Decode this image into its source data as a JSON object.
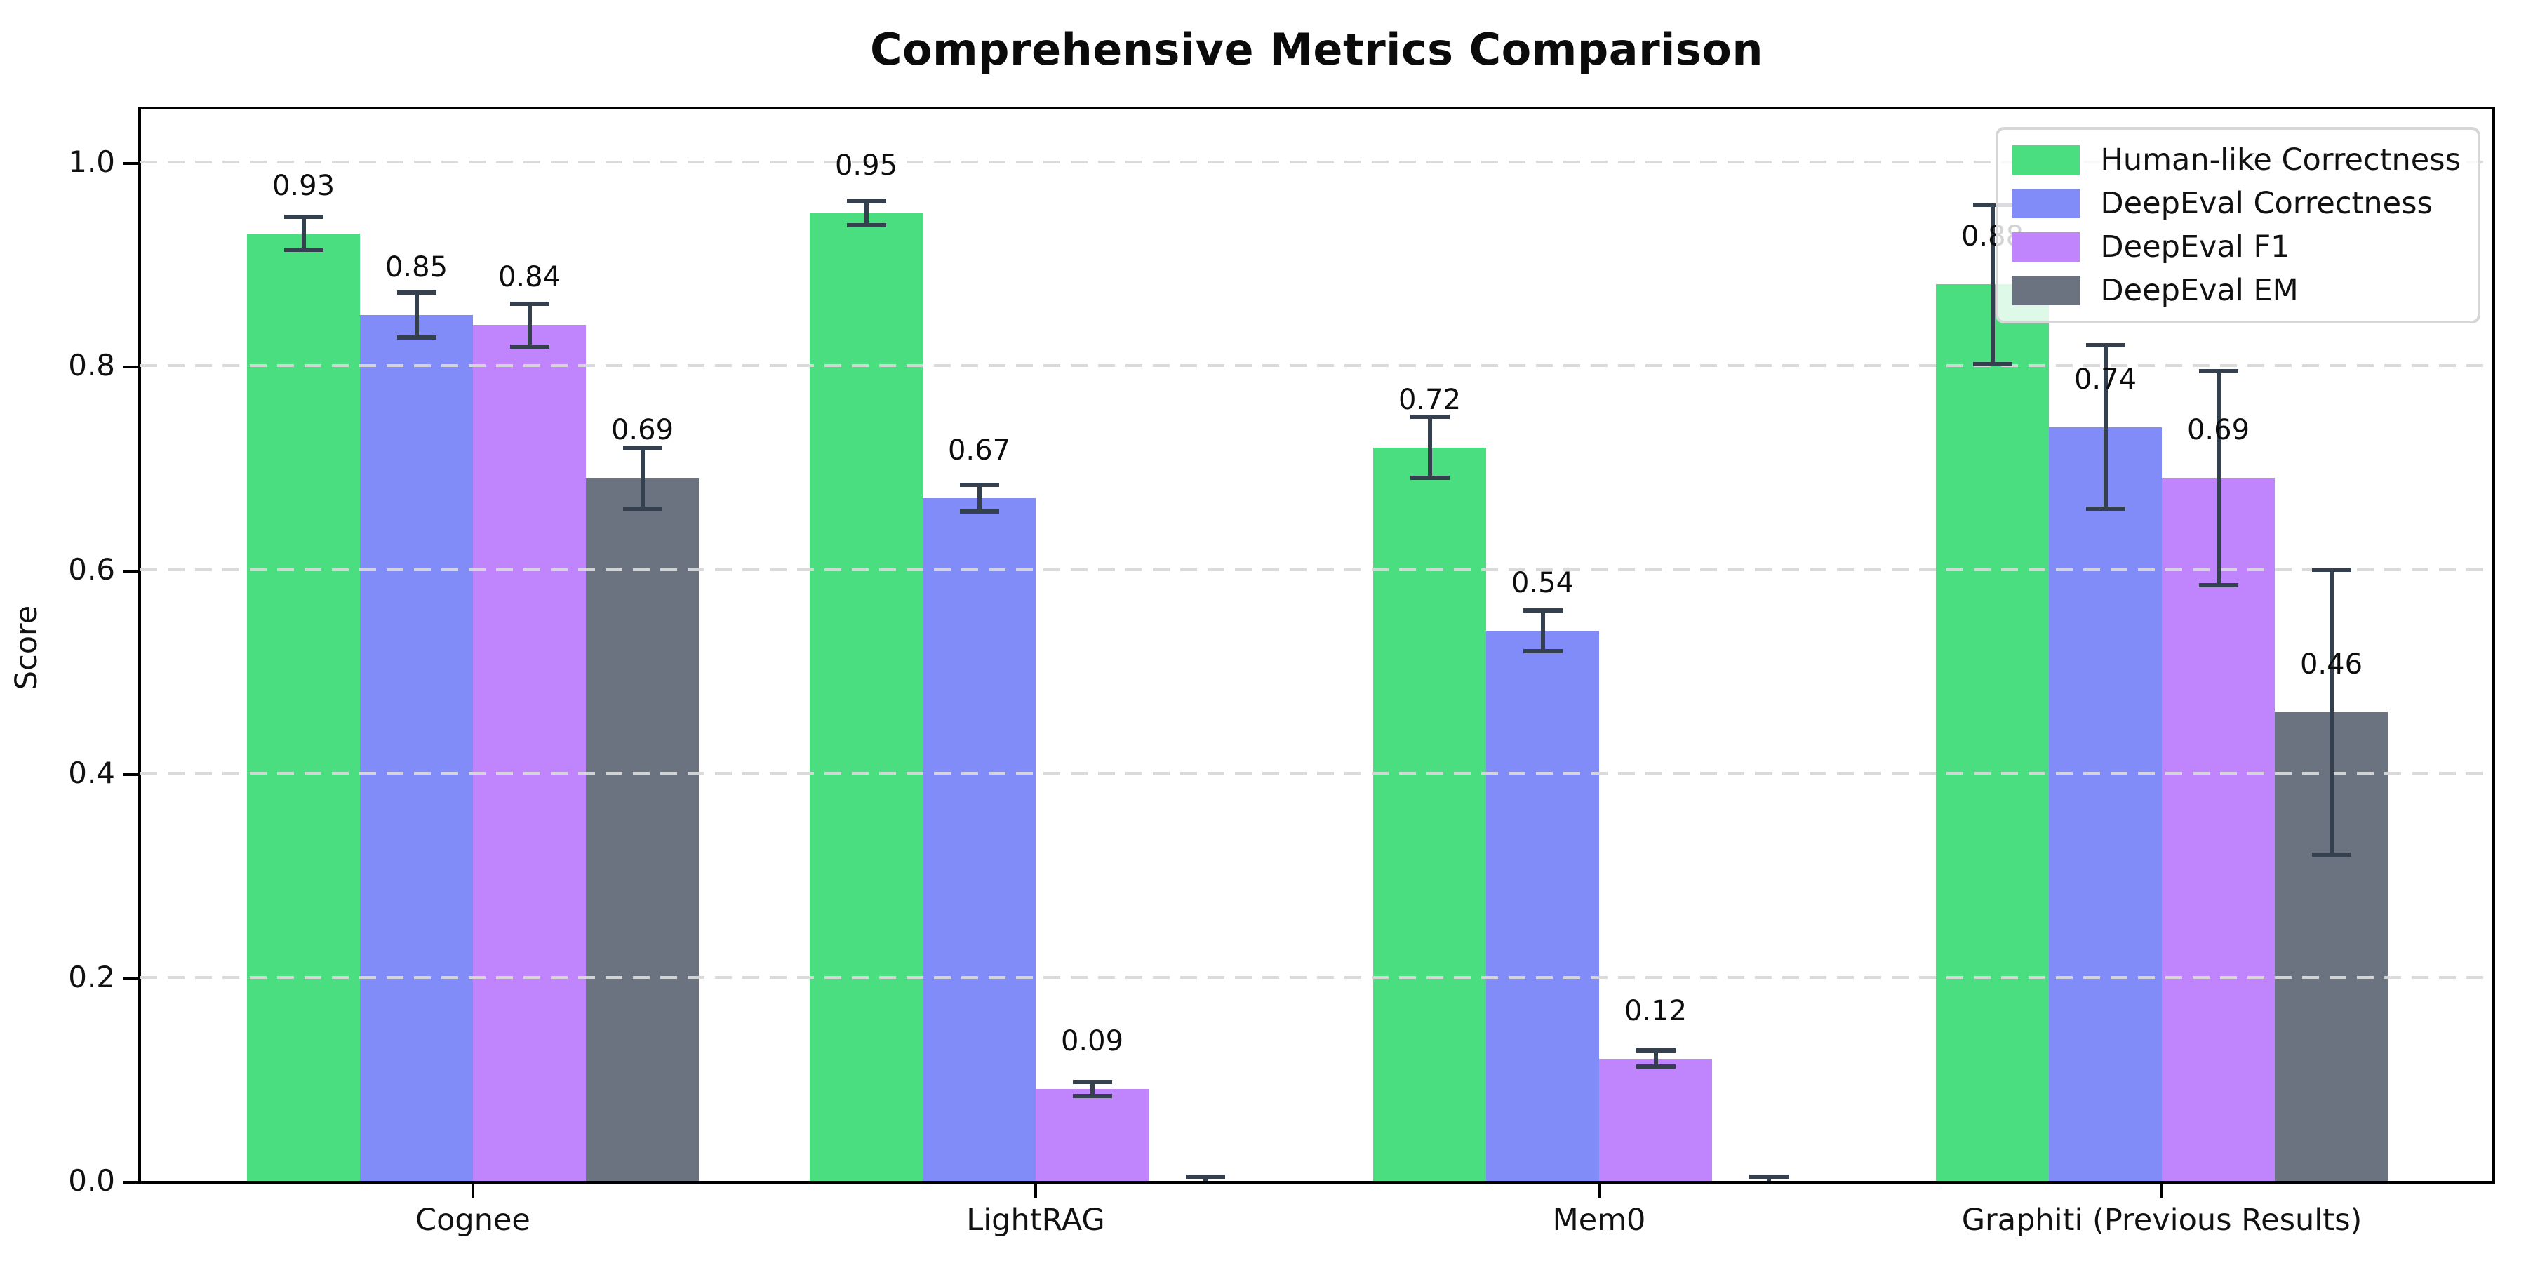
{
  "chart_data": {
    "type": "bar",
    "title": "Comprehensive Metrics Comparison",
    "ylabel": "Score",
    "xlabel": "",
    "categories": [
      "Cognee",
      "LightRAG",
      "Mem0",
      "Graphiti (Previous Results)"
    ],
    "yticks": [
      {
        "value": 0.0,
        "label": "0.0"
      },
      {
        "value": 0.2,
        "label": "0.2"
      },
      {
        "value": 0.4,
        "label": "0.4"
      },
      {
        "value": 0.6,
        "label": "0.6"
      },
      {
        "value": 0.8,
        "label": "0.8"
      },
      {
        "value": 1.0,
        "label": "1.0"
      }
    ],
    "ylim": [
      0,
      1.054
    ],
    "grid": {
      "axis": "y",
      "style": "dashed",
      "color": "#d8d8d8",
      "above_bars": true
    },
    "legend_position": "upper right",
    "error_bar_color": "#35404e",
    "series": [
      {
        "name": "Human-like Correctness",
        "color": "#4ade80",
        "values": [
          0.93,
          0.95,
          0.72,
          0.88
        ],
        "errors": [
          0.016,
          0.012,
          0.03,
          0.078
        ],
        "labels": [
          "0.93",
          "0.95",
          "0.72",
          "0.88"
        ]
      },
      {
        "name": "DeepEval Correctness",
        "color": "#818cf8",
        "values": [
          0.85,
          0.67,
          0.54,
          0.74
        ],
        "errors": [
          0.022,
          0.013,
          0.02,
          0.08
        ],
        "labels": [
          "0.85",
          "0.67",
          "0.54",
          "0.74"
        ]
      },
      {
        "name": "DeepEval F1",
        "color": "#c084fc",
        "values": [
          0.84,
          0.09,
          0.12,
          0.69
        ],
        "errors": [
          0.021,
          0.007,
          0.008,
          0.105
        ],
        "labels": [
          "0.84",
          "0.09",
          "0.12",
          "0.69"
        ]
      },
      {
        "name": "DeepEval EM",
        "color": "#6b7280",
        "values": [
          0.69,
          0.0,
          0.0,
          0.46
        ],
        "errors": [
          0.03,
          0.004,
          0.004,
          0.14
        ],
        "labels": [
          "0.69",
          "",
          "",
          "0.46"
        ]
      }
    ]
  }
}
